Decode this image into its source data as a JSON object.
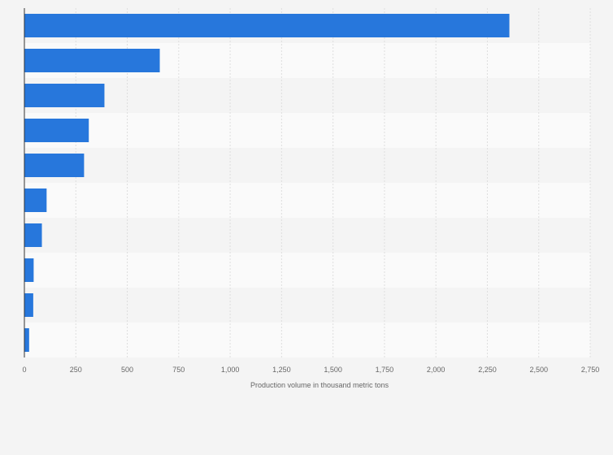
{
  "chart_data": {
    "type": "bar",
    "orientation": "horizontal",
    "categories": [
      "",
      "",
      "",
      "",
      "",
      "",
      "",
      "",
      "",
      ""
    ],
    "values": [
      2357,
      658,
      389,
      313,
      290,
      108,
      85,
      45,
      43,
      23
    ],
    "xlabel": "Production volume in thousand metric tons",
    "xlim": [
      0,
      2750
    ],
    "xticks": [
      0,
      250,
      500,
      750,
      1000,
      1250,
      1500,
      1750,
      2000,
      2250,
      2500,
      2750
    ],
    "xtick_labels": [
      "0",
      "250",
      "500",
      "750",
      "1,000",
      "1,250",
      "1,500",
      "1,750",
      "2,000",
      "2,250",
      "2,500",
      "2,750"
    ],
    "grid": true,
    "colors": {
      "bar": "#2777dc",
      "background": "#f4f4f4",
      "band_alt": "#fafafa",
      "grid": "#dedede"
    }
  }
}
